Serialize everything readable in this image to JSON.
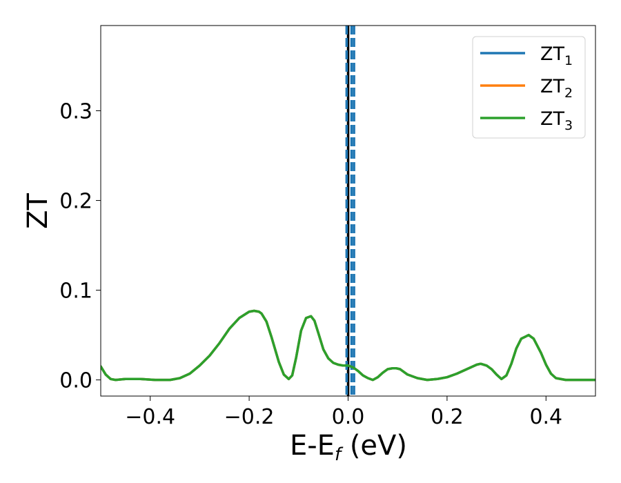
{
  "chart_data": {
    "type": "line",
    "xlabel_main": "E-E",
    "xlabel_sub": "f",
    "xlabel_unit": " (eV)",
    "ylabel": "ZT",
    "xlim": [
      -0.5,
      0.5
    ],
    "ylim": [
      -0.018,
      0.395
    ],
    "xticks": [
      -0.4,
      -0.2,
      0.0,
      0.2,
      0.4
    ],
    "xtick_labels": [
      "−0.4",
      "−0.2",
      "0.0",
      "0.2",
      "0.4"
    ],
    "yticks": [
      0.0,
      0.1,
      0.2,
      0.3
    ],
    "ytick_labels": [
      "0.0",
      "0.1",
      "0.2",
      "0.3"
    ],
    "grid": false,
    "legend": {
      "placement": "top-right"
    },
    "vertical_lines": [
      {
        "x": 0.0,
        "style": "solid",
        "color": "#000000"
      },
      {
        "x": -0.003,
        "style": "dashed",
        "color": "#1f77b4"
      },
      {
        "x": 0.007,
        "style": "dashed",
        "color": "#1f77b4"
      },
      {
        "x": 0.012,
        "style": "dashed",
        "color": "#1f77b4"
      }
    ],
    "x": [
      -0.5,
      -0.49,
      -0.48,
      -0.47,
      -0.45,
      -0.42,
      -0.39,
      -0.36,
      -0.34,
      -0.32,
      -0.3,
      -0.28,
      -0.26,
      -0.24,
      -0.22,
      -0.2,
      -0.19,
      -0.18,
      -0.175,
      -0.165,
      -0.155,
      -0.14,
      -0.13,
      -0.12,
      -0.113,
      -0.105,
      -0.095,
      -0.085,
      -0.075,
      -0.068,
      -0.06,
      -0.05,
      -0.04,
      -0.03,
      -0.02,
      -0.01,
      0.0,
      0.01,
      0.02,
      0.03,
      0.04,
      0.05,
      0.06,
      0.07,
      0.08,
      0.09,
      0.097,
      0.105,
      0.12,
      0.14,
      0.16,
      0.18,
      0.2,
      0.22,
      0.24,
      0.26,
      0.268,
      0.28,
      0.29,
      0.3,
      0.31,
      0.32,
      0.33,
      0.34,
      0.35,
      0.365,
      0.375,
      0.39,
      0.4,
      0.41,
      0.42,
      0.44,
      0.46,
      0.48,
      0.5
    ],
    "series": [
      {
        "name": "ZT",
        "name_sub": "1",
        "color": "#1f77b4",
        "values": [
          0.015,
          0.006,
          0.001,
          0.0,
          0.001,
          0.001,
          0.0,
          0.0,
          0.002,
          0.007,
          0.016,
          0.027,
          0.041,
          0.057,
          0.069,
          0.076,
          0.077,
          0.076,
          0.074,
          0.065,
          0.048,
          0.02,
          0.006,
          0.001,
          0.005,
          0.025,
          0.055,
          0.069,
          0.071,
          0.066,
          0.052,
          0.034,
          0.024,
          0.019,
          0.017,
          0.016,
          0.016,
          0.014,
          0.01,
          0.005,
          0.002,
          0.0,
          0.003,
          0.008,
          0.012,
          0.013,
          0.013,
          0.012,
          0.006,
          0.002,
          0.0,
          0.001,
          0.003,
          0.007,
          0.012,
          0.017,
          0.018,
          0.016,
          0.012,
          0.006,
          0.001,
          0.005,
          0.018,
          0.035,
          0.046,
          0.05,
          0.046,
          0.03,
          0.017,
          0.007,
          0.002,
          0.0,
          0.0,
          0.0,
          0.0
        ]
      },
      {
        "name": "ZT",
        "name_sub": "2",
        "color": "#ff7f0e",
        "values": [
          0.015,
          0.006,
          0.001,
          0.0,
          0.001,
          0.001,
          0.0,
          0.0,
          0.002,
          0.007,
          0.016,
          0.027,
          0.041,
          0.057,
          0.069,
          0.076,
          0.077,
          0.076,
          0.074,
          0.065,
          0.048,
          0.02,
          0.006,
          0.001,
          0.005,
          0.025,
          0.055,
          0.069,
          0.071,
          0.066,
          0.052,
          0.034,
          0.024,
          0.019,
          0.017,
          0.016,
          0.016,
          0.014,
          0.01,
          0.005,
          0.002,
          0.0,
          0.003,
          0.008,
          0.012,
          0.013,
          0.013,
          0.012,
          0.006,
          0.002,
          0.0,
          0.001,
          0.003,
          0.007,
          0.012,
          0.017,
          0.018,
          0.016,
          0.012,
          0.006,
          0.001,
          0.005,
          0.018,
          0.035,
          0.046,
          0.05,
          0.046,
          0.03,
          0.017,
          0.007,
          0.002,
          0.0,
          0.0,
          0.0,
          0.0
        ]
      },
      {
        "name": "ZT",
        "name_sub": "3",
        "color": "#2ca02c",
        "values": [
          0.015,
          0.006,
          0.001,
          0.0,
          0.001,
          0.001,
          0.0,
          0.0,
          0.002,
          0.007,
          0.016,
          0.027,
          0.041,
          0.057,
          0.069,
          0.076,
          0.077,
          0.076,
          0.074,
          0.065,
          0.048,
          0.02,
          0.006,
          0.001,
          0.005,
          0.025,
          0.055,
          0.069,
          0.071,
          0.066,
          0.052,
          0.034,
          0.024,
          0.019,
          0.017,
          0.016,
          0.016,
          0.014,
          0.01,
          0.005,
          0.002,
          0.0,
          0.003,
          0.008,
          0.012,
          0.013,
          0.013,
          0.012,
          0.006,
          0.002,
          0.0,
          0.001,
          0.003,
          0.007,
          0.012,
          0.017,
          0.018,
          0.016,
          0.012,
          0.006,
          0.001,
          0.005,
          0.018,
          0.035,
          0.046,
          0.05,
          0.046,
          0.03,
          0.017,
          0.007,
          0.002,
          0.0,
          0.0,
          0.0,
          0.0
        ]
      }
    ]
  }
}
